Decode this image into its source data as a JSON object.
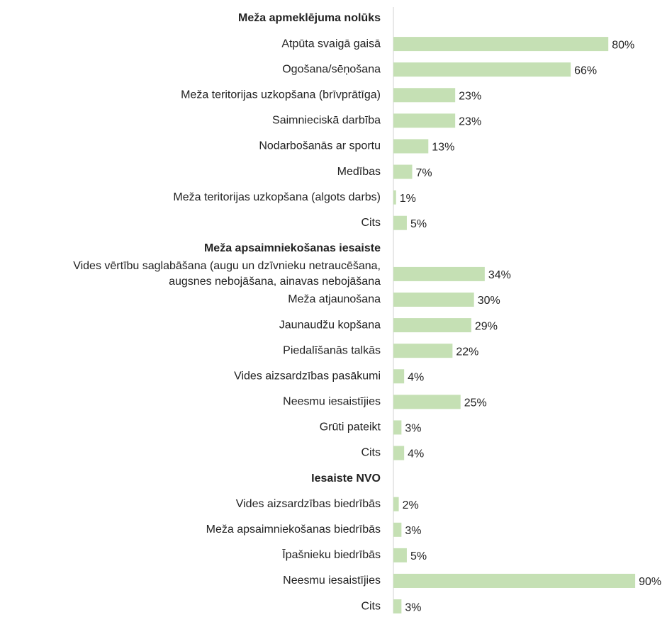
{
  "chart_data": {
    "type": "bar",
    "orientation": "horizontal",
    "color": "#c5e0b4",
    "categories": [
      "Meža apmeklējuma nolūks",
      "Atpūta svaigā gaisā",
      "Ogošana/sēņošana",
      "Meža teritorijas uzkopšana (brīvprātīga)",
      "Saimnieciskā darbība",
      "Nodarbošanās ar sportu",
      "Medības",
      "Meža teritorijas uzkopšana (algots darbs)",
      "Cits",
      "Meža apsaimniekošanas iesaiste",
      "Vides vērtību saglabāšana (augu un dzīvnieku netraucēšana,\naugsnes nebojāšana, ainavas nebojāšana",
      "Meža atjaunošana",
      "Jaunaudžu kopšana",
      "Piedalīšanās talkās",
      "Vides aizsardzības pasākumi",
      "Neesmu iesaistījies",
      "Grūti pateikt",
      "Cits",
      "Iesaiste NVO",
      "Vides aizsardzības biedrībās",
      "Meža apsaimniekošanas biedrībās",
      "Īpašnieku biedrībās",
      "Neesmu iesaistījies",
      "Cits"
    ],
    "values": [
      null,
      80,
      66,
      23,
      23,
      13,
      7,
      1,
      5,
      null,
      34,
      30,
      29,
      22,
      4,
      25,
      3,
      4,
      null,
      2,
      3,
      5,
      90,
      3
    ],
    "value_labels": [
      null,
      "80%",
      "66%",
      "23%",
      "23%",
      "13%",
      "7%",
      "1%",
      "5%",
      null,
      "34%",
      "30%",
      "29%",
      "22%",
      "4%",
      "25%",
      "3%",
      "4%",
      null,
      "2%",
      "3%",
      "5%",
      "90%",
      "3%"
    ]
  }
}
